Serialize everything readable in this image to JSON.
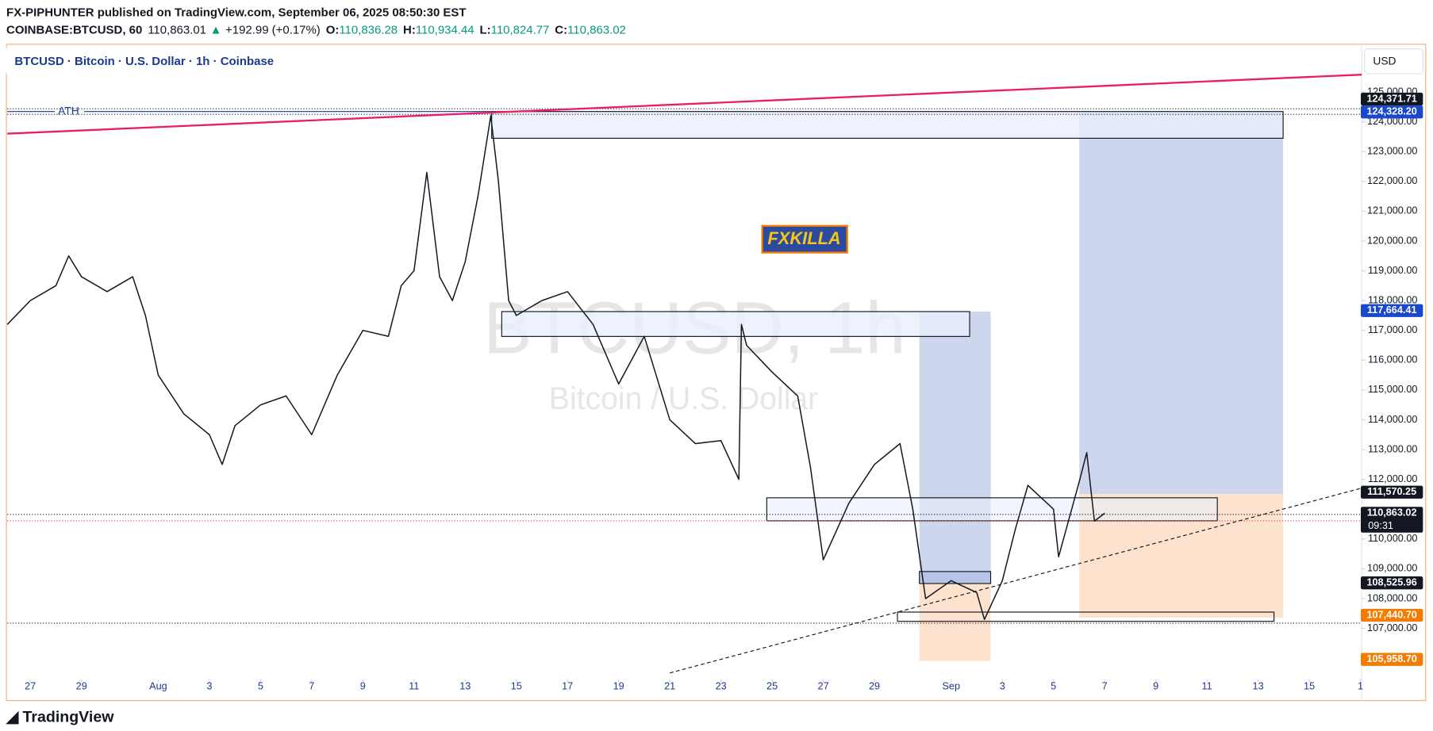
{
  "header": {
    "publisher": "FX-PIPHUNTER published on TradingView.com, September 06, 2025 08:50:30 EST",
    "symbol": "COINBASE:BTCUSD, 60",
    "last": "110,863.01",
    "arrow": "▲",
    "change": "+192.99 (+0.17%)",
    "o_label": "O:",
    "o": "110,836.28",
    "h_label": "H:",
    "h": "110,934.44",
    "l_label": "L:",
    "l": "110,824.77",
    "c_label": "C:",
    "c": "110,863.02"
  },
  "legend": "BTCUSD · Bitcoin · U.S. Dollar · 1h · Coinbase",
  "currency_button": "USD",
  "watermark": {
    "symbol": "BTCUSD, 1h",
    "name": "Bitcoin / U.S. Dollar"
  },
  "annotations": {
    "ath": "ATH",
    "badge": "FXKILLA"
  },
  "footer": "TradingView",
  "chart_data": {
    "type": "line",
    "xlim": [
      -0.9,
      52.05
    ],
    "ylim": [
      105350,
      125550
    ],
    "xticks": [
      {
        "value": 0,
        "label": "27"
      },
      {
        "value": 2,
        "label": "29"
      },
      {
        "value": 5,
        "label": "Aug"
      },
      {
        "value": 7,
        "label": "3"
      },
      {
        "value": 9,
        "label": "5"
      },
      {
        "value": 11,
        "label": "7"
      },
      {
        "value": 13,
        "label": "9"
      },
      {
        "value": 15,
        "label": "11"
      },
      {
        "value": 17,
        "label": "13"
      },
      {
        "value": 19,
        "label": "15"
      },
      {
        "value": 21,
        "label": "17"
      },
      {
        "value": 23,
        "label": "19"
      },
      {
        "value": 25,
        "label": "21"
      },
      {
        "value": 27,
        "label": "23"
      },
      {
        "value": 29,
        "label": "25"
      },
      {
        "value": 31,
        "label": "27"
      },
      {
        "value": 33,
        "label": "29"
      },
      {
        "value": 36,
        "label": "Sep"
      },
      {
        "value": 38,
        "label": "3"
      },
      {
        "value": 40,
        "label": "5"
      },
      {
        "value": 42,
        "label": "7"
      },
      {
        "value": 44,
        "label": "9"
      },
      {
        "value": 46,
        "label": "11"
      },
      {
        "value": 48,
        "label": "13"
      },
      {
        "value": 50,
        "label": "15"
      },
      {
        "value": 52,
        "label": "1"
      }
    ],
    "yticks": [
      {
        "value": 125000,
        "label": "125,000.00"
      },
      {
        "value": 124000,
        "label": "124,000.00"
      },
      {
        "value": 123000,
        "label": "123,000.00"
      },
      {
        "value": 122000,
        "label": "122,000.00"
      },
      {
        "value": 121000,
        "label": "121,000.00"
      },
      {
        "value": 120000,
        "label": "120,000.00"
      },
      {
        "value": 119000,
        "label": "119,000.00"
      },
      {
        "value": 118000,
        "label": "118,000.00"
      },
      {
        "value": 117000,
        "label": "117,000.00"
      },
      {
        "value": 116000,
        "label": "116,000.00"
      },
      {
        "value": 115000,
        "label": "115,000.00"
      },
      {
        "value": 114000,
        "label": "114,000.00"
      },
      {
        "value": 113000,
        "label": "113,000.00"
      },
      {
        "value": 112000,
        "label": "112,000.00"
      },
      {
        "value": 110000,
        "label": "110,000.00"
      },
      {
        "value": 109000,
        "label": "109,000.00"
      },
      {
        "value": 108000,
        "label": "108,000.00"
      },
      {
        "value": 107000,
        "label": "107,000.00"
      }
    ],
    "x": [
      -0.9,
      0,
      1,
      1.5,
      2,
      3,
      4,
      4.5,
      5,
      6,
      7,
      7.5,
      8,
      9,
      10,
      11,
      12,
      13,
      14,
      14.5,
      15,
      15.5,
      16,
      16.5,
      17,
      17.5,
      18,
      18.3,
      18.7,
      19,
      20,
      21,
      22,
      23,
      24,
      25,
      26,
      27,
      27.7,
      27.8,
      28,
      29,
      30,
      30.5,
      31,
      32,
      33,
      34,
      34.5,
      35,
      36,
      37,
      37.3,
      38,
      38.5,
      39,
      40,
      40.2,
      41,
      41.3,
      41.6,
      42
    ],
    "series": [
      {
        "color": "#131722",
        "values": [
          117200,
          118000,
          118500,
          119500,
          118800,
          118300,
          118800,
          117500,
          115500,
          114200,
          113500,
          112500,
          113800,
          114500,
          114800,
          113500,
          115500,
          117000,
          116800,
          118500,
          119000,
          122300,
          118800,
          118000,
          119300,
          121500,
          124200,
          122000,
          118000,
          117500,
          118000,
          118300,
          117200,
          115200,
          116800,
          114000,
          113200,
          113300,
          112000,
          117200,
          116500,
          115600,
          114800,
          112400,
          109300,
          111200,
          112500,
          113200,
          111000,
          108000,
          108600,
          108200,
          107300,
          108600,
          110300,
          111800,
          111000,
          109400,
          111900,
          112900,
          110600,
          110863
        ]
      }
    ],
    "price_labels": [
      {
        "value": 124371.71,
        "label": "124,371.71",
        "color": "#131722"
      },
      {
        "value": 124328.2,
        "label": "124,328.20",
        "color": "#1848cc"
      },
      {
        "value": 117664.41,
        "label": "117,664.41",
        "color": "#1848cc"
      },
      {
        "value": 111570.25,
        "label": "111,570.25",
        "color": "#131722"
      },
      {
        "value": 110863.02,
        "label": "110,863.02",
        "color": "#131722"
      },
      {
        "value": 108525.96,
        "label": "108,525.96",
        "color": "#131722"
      },
      {
        "value": 107440.7,
        "label": "107,440.70",
        "color": "#f57c00"
      },
      {
        "value": 105958.7,
        "label": "105,958.70",
        "color": "#f57c00"
      }
    ],
    "countdown": "09:31"
  }
}
